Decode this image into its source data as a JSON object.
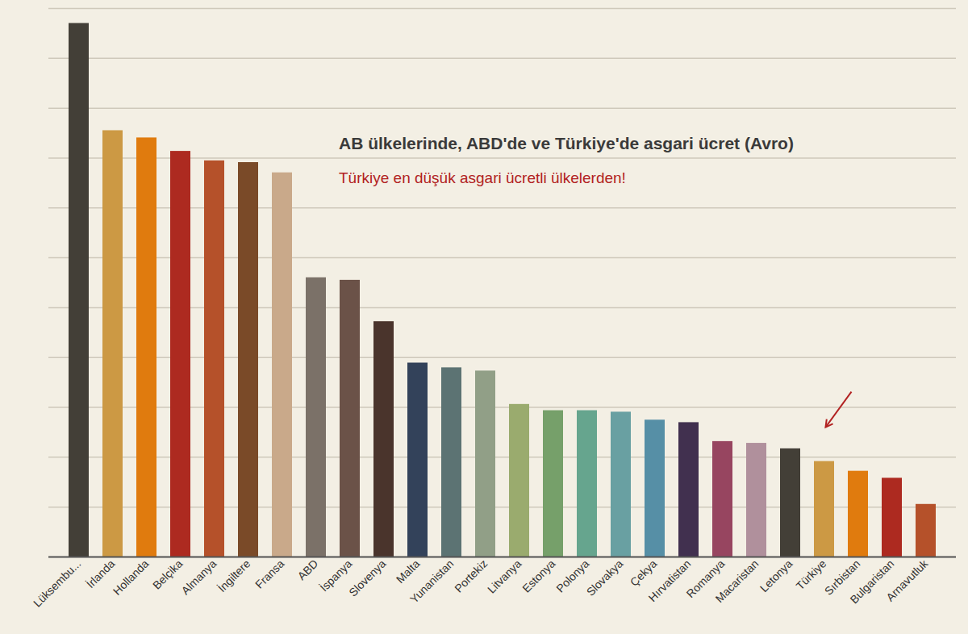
{
  "chart_data": {
    "type": "bar",
    "title": "AB ülkelerinde, ABD'de ve Türkiye'de asgari ücret (Avro)",
    "subtitle": "Türkiye en düşük asgari ücretli ülkelerden!",
    "categories": [
      "Lüksembu...",
      "İrlanda",
      "Hollanda",
      "Belçika",
      "Almanya",
      "İngiltere",
      "Fransa",
      "ABD",
      "İspanya",
      "Slovenya",
      "Malta",
      "Yunanistan",
      "Portekiz",
      "Litvanya",
      "Estonya",
      "Polonya",
      "Slovakya",
      "Çekya",
      "Hırvatistan",
      "Romanya",
      "Macaristan",
      "Letonya",
      "Türkiye",
      "Sırbistan",
      "Bulgaristan",
      "Arnavutluk"
    ],
    "values": [
      2140,
      1710,
      1681,
      1627,
      1589,
      1582,
      1541,
      1120,
      1110,
      944,
      778,
      759,
      746,
      612,
      587,
      587,
      581,
      549,
      539,
      463,
      456,
      434,
      383,
      344,
      316,
      211
    ],
    "colors": [
      "#433f37",
      "#cc9944",
      "#e07b0e",
      "#ad2a20",
      "#b5512a",
      "#7a4a28",
      "#c9a98a",
      "#7b7168",
      "#6b5248",
      "#4a342c",
      "#33425a",
      "#5c7373",
      "#919f87",
      "#9aab6e",
      "#76a06a",
      "#66a58e",
      "#69a0a2",
      "#568fa6",
      "#41304f",
      "#974560",
      "#b0909c",
      "#433f37",
      "#cc9944",
      "#e07b0e",
      "#ad2a20",
      "#b5512a"
    ],
    "ylim": [
      0,
      2200
    ],
    "yticks": [
      0,
      200,
      400,
      600,
      800,
      1000,
      1200,
      1400,
      1600,
      1800,
      2000,
      2200
    ],
    "grid": true,
    "tick_labels": "x"
  }
}
